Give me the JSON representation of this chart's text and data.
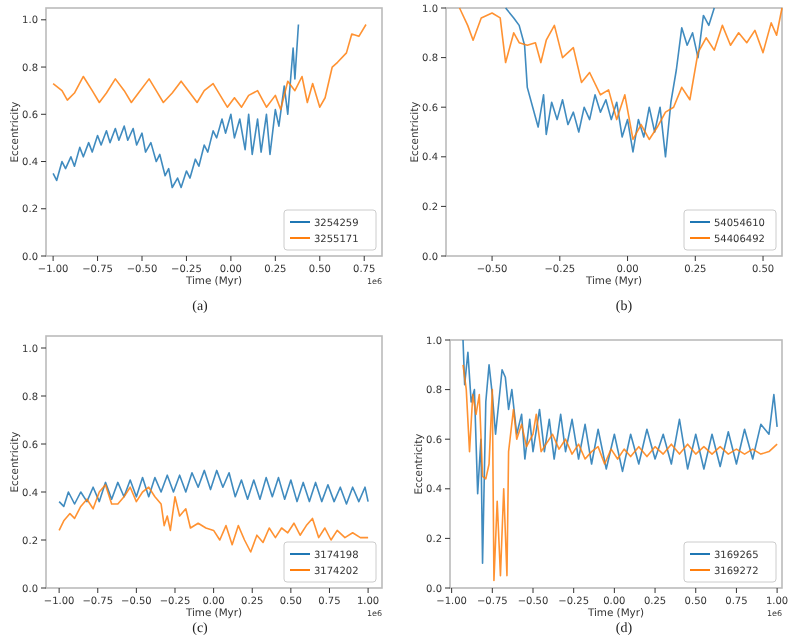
{
  "chart_data": [
    {
      "type": "line",
      "xlabel": "Time (Myr)",
      "ylabel": "Eccentricity",
      "legend": "bottom right",
      "annotations": [
        "1e6",
        "(a)"
      ],
      "xlim": [
        -1.04,
        0.85
      ],
      "ylim": [
        0,
        1.05
      ],
      "xticks": [
        {
          "value": -1,
          "label": "−1.00"
        },
        {
          "value": -0.75,
          "label": "−0.75"
        },
        {
          "value": -0.5,
          "label": "−0.50"
        },
        {
          "value": -0.25,
          "label": "−0.25"
        },
        {
          "value": 0,
          "label": "0.00"
        },
        {
          "value": 0.25,
          "label": "0.25"
        },
        {
          "value": 0.5,
          "label": "0.50"
        },
        {
          "value": 0.75,
          "label": "0.75"
        }
      ],
      "yticks": [
        {
          "value": 0,
          "label": "0.0"
        },
        {
          "value": 0.2,
          "label": "0.2"
        },
        {
          "value": 0.4,
          "label": "0.4"
        },
        {
          "value": 0.6,
          "label": "0.6"
        },
        {
          "value": 0.8,
          "label": "0.8"
        },
        {
          "value": 1,
          "label": "1.0"
        }
      ],
      "series": [
        {
          "name": "3254259",
          "color": "#1f77b4",
          "x": [
            -1.0,
            -0.98,
            -0.95,
            -0.93,
            -0.9,
            -0.88,
            -0.85,
            -0.83,
            -0.8,
            -0.78,
            -0.75,
            -0.73,
            -0.7,
            -0.68,
            -0.65,
            -0.63,
            -0.6,
            -0.58,
            -0.55,
            -0.53,
            -0.5,
            -0.48,
            -0.45,
            -0.42,
            -0.4,
            -0.37,
            -0.35,
            -0.33,
            -0.3,
            -0.28,
            -0.25,
            -0.23,
            -0.2,
            -0.18,
            -0.15,
            -0.13,
            -0.1,
            -0.08,
            -0.05,
            -0.03,
            0.0,
            0.02,
            0.05,
            0.08,
            0.1,
            0.12,
            0.15,
            0.17,
            0.2,
            0.22,
            0.25,
            0.27,
            0.3,
            0.32,
            0.35,
            0.36,
            0.38
          ],
          "values": [
            0.35,
            0.32,
            0.4,
            0.37,
            0.42,
            0.38,
            0.46,
            0.42,
            0.48,
            0.44,
            0.51,
            0.47,
            0.53,
            0.48,
            0.54,
            0.49,
            0.55,
            0.49,
            0.54,
            0.47,
            0.52,
            0.44,
            0.48,
            0.4,
            0.43,
            0.34,
            0.37,
            0.29,
            0.33,
            0.29,
            0.36,
            0.33,
            0.41,
            0.38,
            0.47,
            0.44,
            0.53,
            0.5,
            0.58,
            0.52,
            0.6,
            0.5,
            0.58,
            0.45,
            0.6,
            0.43,
            0.58,
            0.44,
            0.6,
            0.43,
            0.62,
            0.55,
            0.72,
            0.6,
            0.88,
            0.75,
            0.98
          ]
        },
        {
          "name": "3255171",
          "color": "#ff7f0e",
          "x": [
            -1.0,
            -0.95,
            -0.92,
            -0.88,
            -0.83,
            -0.78,
            -0.74,
            -0.7,
            -0.65,
            -0.6,
            -0.56,
            -0.52,
            -0.46,
            -0.42,
            -0.38,
            -0.33,
            -0.28,
            -0.23,
            -0.19,
            -0.15,
            -0.1,
            -0.06,
            -0.02,
            0.02,
            0.06,
            0.1,
            0.15,
            0.2,
            0.25,
            0.28,
            0.32,
            0.36,
            0.4,
            0.43,
            0.46,
            0.5,
            0.53,
            0.57,
            0.6,
            0.65,
            0.68,
            0.72,
            0.76
          ],
          "values": [
            0.73,
            0.7,
            0.66,
            0.69,
            0.76,
            0.7,
            0.65,
            0.69,
            0.75,
            0.7,
            0.65,
            0.69,
            0.75,
            0.7,
            0.65,
            0.69,
            0.74,
            0.69,
            0.65,
            0.7,
            0.73,
            0.68,
            0.63,
            0.67,
            0.63,
            0.68,
            0.7,
            0.63,
            0.68,
            0.62,
            0.74,
            0.7,
            0.76,
            0.65,
            0.73,
            0.63,
            0.67,
            0.8,
            0.82,
            0.86,
            0.94,
            0.93,
            0.98
          ]
        }
      ]
    },
    {
      "type": "line",
      "xlabel": "Time (Myr)",
      "ylabel": "Eccentricity",
      "legend": "bottom right",
      "annotations": [
        "(b)"
      ],
      "xlim": [
        -0.67,
        0.57
      ],
      "ylim": [
        0,
        1
      ],
      "xticks": [
        {
          "value": -0.5,
          "label": "−0.50"
        },
        {
          "value": -0.25,
          "label": "−0.25"
        },
        {
          "value": 0,
          "label": "0.00"
        },
        {
          "value": 0.25,
          "label": "0.25"
        },
        {
          "value": 0.5,
          "label": "0.50"
        }
      ],
      "yticks": [
        {
          "value": 0,
          "label": "0.0"
        },
        {
          "value": 0.2,
          "label": "0.2"
        },
        {
          "value": 0.4,
          "label": "0.4"
        },
        {
          "value": 0.6,
          "label": "0.6"
        },
        {
          "value": 0.8,
          "label": "0.8"
        },
        {
          "value": 1,
          "label": "1.0"
        }
      ],
      "series": [
        {
          "name": "54054610",
          "color": "#1f77b4",
          "x": [
            -0.45,
            -0.42,
            -0.4,
            -0.38,
            -0.37,
            -0.35,
            -0.33,
            -0.31,
            -0.3,
            -0.28,
            -0.26,
            -0.24,
            -0.22,
            -0.2,
            -0.18,
            -0.16,
            -0.14,
            -0.12,
            -0.1,
            -0.08,
            -0.06,
            -0.04,
            -0.02,
            0.0,
            0.02,
            0.04,
            0.06,
            0.08,
            0.1,
            0.12,
            0.14,
            0.16,
            0.18,
            0.2,
            0.22,
            0.24,
            0.26,
            0.28,
            0.3,
            0.32
          ],
          "values": [
            1.0,
            0.96,
            0.93,
            0.85,
            0.68,
            0.6,
            0.52,
            0.65,
            0.49,
            0.62,
            0.55,
            0.63,
            0.53,
            0.58,
            0.5,
            0.6,
            0.55,
            0.65,
            0.58,
            0.63,
            0.55,
            0.62,
            0.48,
            0.55,
            0.42,
            0.55,
            0.48,
            0.6,
            0.5,
            0.6,
            0.4,
            0.62,
            0.75,
            0.92,
            0.85,
            0.9,
            0.8,
            0.97,
            0.93,
            1.0
          ]
        },
        {
          "name": "54406492",
          "color": "#ff7f0e",
          "x": [
            -0.62,
            -0.59,
            -0.57,
            -0.54,
            -0.5,
            -0.47,
            -0.45,
            -0.42,
            -0.4,
            -0.37,
            -0.34,
            -0.32,
            -0.3,
            -0.27,
            -0.24,
            -0.2,
            -0.17,
            -0.14,
            -0.1,
            -0.07,
            -0.04,
            -0.01,
            0.02,
            0.05,
            0.08,
            0.11,
            0.14,
            0.17,
            0.2,
            0.23,
            0.26,
            0.29,
            0.32,
            0.35,
            0.38,
            0.41,
            0.44,
            0.47,
            0.5,
            0.53,
            0.55,
            0.57
          ],
          "values": [
            1.0,
            0.93,
            0.87,
            0.96,
            0.98,
            0.96,
            0.78,
            0.9,
            0.86,
            0.85,
            0.86,
            0.78,
            0.87,
            0.93,
            0.8,
            0.84,
            0.7,
            0.74,
            0.65,
            0.67,
            0.55,
            0.65,
            0.47,
            0.53,
            0.47,
            0.52,
            0.58,
            0.6,
            0.68,
            0.63,
            0.82,
            0.88,
            0.83,
            0.93,
            0.85,
            0.9,
            0.86,
            0.91,
            0.82,
            0.94,
            0.89,
            1.0
          ]
        }
      ]
    },
    {
      "type": "line",
      "xlabel": "Time (Myr)",
      "ylabel": "Eccentricity",
      "legend": "bottom right",
      "annotations": [
        "1e6",
        "(c)"
      ],
      "xlim": [
        -1.085,
        1.09
      ],
      "ylim": [
        0,
        1.05
      ],
      "xticks": [
        {
          "value": -1,
          "label": "−1.00"
        },
        {
          "value": -0.75,
          "label": "−0.75"
        },
        {
          "value": -0.5,
          "label": "−0.50"
        },
        {
          "value": -0.25,
          "label": "−0.25"
        },
        {
          "value": 0,
          "label": "0.00"
        },
        {
          "value": 0.25,
          "label": "0.25"
        },
        {
          "value": 0.5,
          "label": "0.50"
        },
        {
          "value": 0.75,
          "label": "0.75"
        },
        {
          "value": 1,
          "label": "1.00"
        }
      ],
      "yticks": [
        {
          "value": 0,
          "label": "0.0"
        },
        {
          "value": 0.2,
          "label": "0.2"
        },
        {
          "value": 0.4,
          "label": "0.4"
        },
        {
          "value": 0.6,
          "label": "0.6"
        },
        {
          "value": 0.8,
          "label": "0.8"
        },
        {
          "value": 1,
          "label": "1.0"
        }
      ],
      "series": [
        {
          "name": "3174198",
          "color": "#1f77b4",
          "x": [
            -1.0,
            -0.97,
            -0.94,
            -0.9,
            -0.86,
            -0.82,
            -0.78,
            -0.74,
            -0.7,
            -0.66,
            -0.62,
            -0.58,
            -0.54,
            -0.5,
            -0.46,
            -0.42,
            -0.38,
            -0.34,
            -0.3,
            -0.26,
            -0.22,
            -0.18,
            -0.14,
            -0.1,
            -0.06,
            -0.02,
            0.02,
            0.06,
            0.1,
            0.14,
            0.18,
            0.22,
            0.26,
            0.3,
            0.34,
            0.38,
            0.42,
            0.46,
            0.5,
            0.54,
            0.58,
            0.62,
            0.66,
            0.7,
            0.74,
            0.78,
            0.82,
            0.86,
            0.9,
            0.94,
            0.98,
            1.0
          ],
          "values": [
            0.36,
            0.34,
            0.4,
            0.35,
            0.4,
            0.36,
            0.42,
            0.36,
            0.44,
            0.37,
            0.44,
            0.38,
            0.45,
            0.38,
            0.46,
            0.38,
            0.46,
            0.4,
            0.47,
            0.4,
            0.47,
            0.4,
            0.48,
            0.42,
            0.49,
            0.41,
            0.49,
            0.42,
            0.48,
            0.38,
            0.45,
            0.37,
            0.45,
            0.37,
            0.46,
            0.38,
            0.46,
            0.37,
            0.45,
            0.36,
            0.44,
            0.36,
            0.44,
            0.36,
            0.43,
            0.36,
            0.42,
            0.35,
            0.42,
            0.36,
            0.42,
            0.36
          ]
        },
        {
          "name": "3174202",
          "color": "#ff7f0e",
          "x": [
            -1.0,
            -0.97,
            -0.93,
            -0.9,
            -0.86,
            -0.82,
            -0.78,
            -0.74,
            -0.7,
            -0.66,
            -0.62,
            -0.58,
            -0.54,
            -0.5,
            -0.46,
            -0.42,
            -0.38,
            -0.34,
            -0.32,
            -0.3,
            -0.28,
            -0.25,
            -0.22,
            -0.18,
            -0.15,
            -0.1,
            -0.05,
            0.0,
            0.04,
            0.08,
            0.12,
            0.16,
            0.2,
            0.24,
            0.28,
            0.32,
            0.36,
            0.4,
            0.44,
            0.48,
            0.52,
            0.56,
            0.6,
            0.64,
            0.68,
            0.72,
            0.76,
            0.8,
            0.85,
            0.9,
            0.95,
            1.0
          ],
          "values": [
            0.24,
            0.28,
            0.31,
            0.29,
            0.34,
            0.37,
            0.33,
            0.4,
            0.43,
            0.35,
            0.35,
            0.38,
            0.42,
            0.36,
            0.4,
            0.42,
            0.38,
            0.35,
            0.26,
            0.3,
            0.24,
            0.38,
            0.3,
            0.33,
            0.25,
            0.27,
            0.25,
            0.24,
            0.2,
            0.26,
            0.18,
            0.26,
            0.2,
            0.15,
            0.22,
            0.19,
            0.25,
            0.21,
            0.25,
            0.23,
            0.27,
            0.22,
            0.26,
            0.29,
            0.21,
            0.25,
            0.2,
            0.24,
            0.21,
            0.23,
            0.21,
            0.21
          ]
        }
      ]
    },
    {
      "type": "line",
      "xlabel": "Time (Myr)",
      "ylabel": "Eccentricity",
      "legend": "bottom right",
      "annotations": [
        "1e6",
        "(d)"
      ],
      "xlim": [
        -1.01,
        1.03
      ],
      "ylim": [
        0,
        1
      ],
      "xticks": [
        {
          "value": -1,
          "label": "−1.00"
        },
        {
          "value": -0.75,
          "label": "−0.75"
        },
        {
          "value": -0.5,
          "label": "−0.50"
        },
        {
          "value": -0.25,
          "label": "−0.25"
        },
        {
          "value": 0,
          "label": "0.00"
        },
        {
          "value": 0.25,
          "label": "0.25"
        },
        {
          "value": 0.5,
          "label": "0.50"
        },
        {
          "value": 0.75,
          "label": "0.75"
        },
        {
          "value": 1,
          "label": "1.00"
        }
      ],
      "yticks": [
        {
          "value": 0,
          "label": "0.0"
        },
        {
          "value": 0.2,
          "label": "0.2"
        },
        {
          "value": 0.4,
          "label": "0.4"
        },
        {
          "value": 0.6,
          "label": "0.6"
        },
        {
          "value": 0.8,
          "label": "0.8"
        },
        {
          "value": 1,
          "label": "1.0"
        }
      ],
      "series": [
        {
          "name": "3169265",
          "color": "#1f77b4",
          "x": [
            -0.93,
            -0.92,
            -0.9,
            -0.88,
            -0.86,
            -0.84,
            -0.82,
            -0.81,
            -0.79,
            -0.77,
            -0.75,
            -0.73,
            -0.71,
            -0.69,
            -0.67,
            -0.65,
            -0.63,
            -0.6,
            -0.57,
            -0.55,
            -0.52,
            -0.5,
            -0.46,
            -0.43,
            -0.4,
            -0.37,
            -0.33,
            -0.3,
            -0.26,
            -0.22,
            -0.18,
            -0.14,
            -0.1,
            -0.05,
            0.0,
            0.05,
            0.1,
            0.15,
            0.2,
            0.25,
            0.3,
            0.35,
            0.4,
            0.45,
            0.5,
            0.55,
            0.6,
            0.65,
            0.7,
            0.75,
            0.8,
            0.85,
            0.9,
            0.95,
            0.98,
            1.0
          ],
          "values": [
            1.0,
            0.82,
            0.95,
            0.75,
            0.8,
            0.38,
            0.6,
            0.1,
            0.75,
            0.9,
            0.78,
            0.62,
            0.75,
            0.88,
            0.85,
            0.72,
            0.8,
            0.62,
            0.7,
            0.52,
            0.68,
            0.55,
            0.72,
            0.55,
            0.68,
            0.52,
            0.7,
            0.55,
            0.68,
            0.52,
            0.66,
            0.5,
            0.64,
            0.48,
            0.62,
            0.47,
            0.62,
            0.5,
            0.64,
            0.52,
            0.62,
            0.5,
            0.68,
            0.48,
            0.62,
            0.48,
            0.62,
            0.49,
            0.63,
            0.5,
            0.64,
            0.52,
            0.66,
            0.62,
            0.78,
            0.65
          ]
        },
        {
          "name": "3169272",
          "color": "#ff7f0e",
          "x": [
            -0.93,
            -0.91,
            -0.89,
            -0.87,
            -0.85,
            -0.83,
            -0.81,
            -0.79,
            -0.77,
            -0.75,
            -0.74,
            -0.72,
            -0.7,
            -0.68,
            -0.66,
            -0.65,
            -0.62,
            -0.6,
            -0.57,
            -0.54,
            -0.5,
            -0.48,
            -0.45,
            -0.42,
            -0.38,
            -0.34,
            -0.3,
            -0.26,
            -0.22,
            -0.18,
            -0.14,
            -0.1,
            -0.06,
            -0.02,
            0.02,
            0.06,
            0.1,
            0.15,
            0.2,
            0.25,
            0.3,
            0.35,
            0.4,
            0.45,
            0.5,
            0.55,
            0.6,
            0.65,
            0.7,
            0.75,
            0.8,
            0.85,
            0.9,
            0.95,
            1.0
          ],
          "values": [
            0.9,
            0.8,
            0.55,
            0.78,
            0.7,
            0.78,
            0.45,
            0.44,
            0.5,
            0.8,
            0.03,
            0.35,
            0.05,
            0.4,
            0.05,
            0.55,
            0.72,
            0.6,
            0.66,
            0.57,
            0.62,
            0.7,
            0.55,
            0.58,
            0.62,
            0.56,
            0.6,
            0.54,
            0.58,
            0.52,
            0.55,
            0.57,
            0.5,
            0.56,
            0.52,
            0.56,
            0.53,
            0.57,
            0.53,
            0.57,
            0.54,
            0.58,
            0.54,
            0.58,
            0.54,
            0.57,
            0.54,
            0.57,
            0.54,
            0.56,
            0.54,
            0.56,
            0.54,
            0.55,
            0.58
          ]
        }
      ]
    }
  ]
}
